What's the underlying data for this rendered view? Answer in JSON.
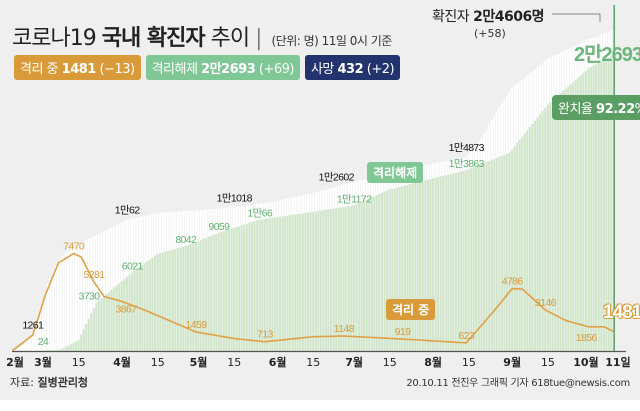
{
  "header": {
    "title_regular": "코로나19",
    "title_bold": "국내 확진자",
    "title_tail": "추이",
    "unit_note": "(단위: 명) 11일 0시 기준"
  },
  "badges": {
    "isolating": {
      "label": "격리 중",
      "value": "1481",
      "change": "(−13)"
    },
    "released": {
      "label": "격리해제",
      "value": "2만2693",
      "change": "(+69)"
    },
    "deaths": {
      "label": "사망",
      "value": "432",
      "change": "(+2)"
    }
  },
  "total": {
    "label": "확진자",
    "value": "2만4606명",
    "change": "(+58)"
  },
  "released_latest": "2만2693",
  "recovery_rate": {
    "label": "완치율",
    "value": "92.22",
    "unit": "%"
  },
  "tags": {
    "released": "격리해제",
    "isolating": "격리 중"
  },
  "isolating_latest": "1481",
  "source": {
    "label": "자료:",
    "value": "질병관리청"
  },
  "credit": "20.10.11 전진우 그래픽 기자 618tue@newsis.com",
  "colors": {
    "background": "#efefef",
    "confirmed": "#ffffff",
    "released": "#cfe6c9",
    "isolating": "#e0a045",
    "deaths": "#23336e",
    "released_label": "#6bb67a"
  },
  "chart_data": {
    "type": "area",
    "xlabel": "",
    "ylabel": "",
    "x_range": [
      "2020-02-18",
      "2020-10-11"
    ],
    "ylim": [
      0,
      24606
    ],
    "grid": false,
    "x_ticks": [
      {
        "date": "2020-02-18",
        "label": "2월"
      },
      {
        "date": "2020-03-01",
        "label": "3월"
      },
      {
        "date": "2020-03-15",
        "label": "15"
      },
      {
        "date": "2020-04-01",
        "label": "4월"
      },
      {
        "date": "2020-04-15",
        "label": "15"
      },
      {
        "date": "2020-05-01",
        "label": "5월"
      },
      {
        "date": "2020-05-15",
        "label": "15"
      },
      {
        "date": "2020-06-01",
        "label": "6월"
      },
      {
        "date": "2020-06-15",
        "label": "15"
      },
      {
        "date": "2020-07-01",
        "label": "7월"
      },
      {
        "date": "2020-07-15",
        "label": "15"
      },
      {
        "date": "2020-08-01",
        "label": "8월"
      },
      {
        "date": "2020-08-15",
        "label": "15"
      },
      {
        "date": "2020-09-01",
        "label": "9월"
      },
      {
        "date": "2020-09-15",
        "label": "15"
      },
      {
        "date": "2020-10-01",
        "label": "10월"
      },
      {
        "date": "2020-10-11",
        "label": "11일"
      }
    ],
    "series": [
      {
        "key": "confirmed",
        "type": "bar",
        "points": [
          [
            "2020-02-18",
            31
          ],
          [
            "2020-02-22",
            433
          ],
          [
            "2020-02-26",
            1261
          ],
          [
            "2020-02-29",
            3150
          ],
          [
            "2020-03-03",
            5186
          ],
          [
            "2020-03-06",
            6593
          ],
          [
            "2020-03-10",
            7513
          ],
          [
            "2020-03-15",
            8162
          ],
          [
            "2020-03-22",
            8897
          ],
          [
            "2020-04-03",
            10062
          ],
          [
            "2020-04-15",
            10591
          ],
          [
            "2020-05-01",
            10774
          ],
          [
            "2020-05-15",
            11018
          ],
          [
            "2020-06-01",
            11503
          ],
          [
            "2020-06-15",
            12121
          ],
          [
            "2020-06-24",
            12602
          ],
          [
            "2020-07-15",
            13612
          ],
          [
            "2020-08-01",
            14366
          ],
          [
            "2020-08-14",
            14873
          ],
          [
            "2020-08-20",
            16346
          ],
          [
            "2020-08-27",
            18706
          ],
          [
            "2020-09-01",
            20182
          ],
          [
            "2020-09-15",
            22391
          ],
          [
            "2020-10-01",
            23889
          ],
          [
            "2020-10-11",
            24606
          ]
        ]
      },
      {
        "key": "released",
        "type": "bar",
        "points": [
          [
            "2020-02-18",
            12
          ],
          [
            "2020-03-01",
            24
          ],
          [
            "2020-03-08",
            118
          ],
          [
            "2020-03-15",
            834
          ],
          [
            "2020-03-22",
            3730
          ],
          [
            "2020-04-05",
            6021
          ],
          [
            "2020-04-15",
            7447
          ],
          [
            "2020-04-26",
            8042
          ],
          [
            "2020-05-09",
            9059
          ],
          [
            "2020-05-25",
            10066
          ],
          [
            "2020-06-15",
            10669
          ],
          [
            "2020-07-01",
            11172
          ],
          [
            "2020-07-15",
            12385
          ],
          [
            "2020-08-01",
            13233
          ],
          [
            "2020-08-14",
            13863
          ],
          [
            "2020-08-31",
            15198
          ],
          [
            "2020-09-15",
            18891
          ],
          [
            "2020-10-01",
            21666
          ],
          [
            "2020-10-11",
            22693
          ]
        ]
      },
      {
        "key": "isolating",
        "type": "line",
        "points": [
          [
            "2020-02-18",
            29
          ],
          [
            "2020-02-26",
            1225
          ],
          [
            "2020-03-02",
            4335
          ],
          [
            "2020-03-07",
            6743
          ],
          [
            "2020-03-13",
            7470
          ],
          [
            "2020-03-16",
            7206
          ],
          [
            "2020-03-21",
            5281
          ],
          [
            "2020-03-25",
            4166
          ],
          [
            "2020-03-31",
            3867
          ],
          [
            "2020-04-10",
            3125
          ],
          [
            "2020-04-30",
            1459
          ],
          [
            "2020-05-15",
            956
          ],
          [
            "2020-05-27",
            713
          ],
          [
            "2020-06-15",
            1095
          ],
          [
            "2020-06-27",
            1148
          ],
          [
            "2020-07-20",
            919
          ],
          [
            "2020-08-14",
            623
          ],
          [
            "2020-08-25",
            3100
          ],
          [
            "2020-09-01",
            4786
          ],
          [
            "2020-09-05",
            4747
          ],
          [
            "2020-09-14",
            3146
          ],
          [
            "2020-09-22",
            2336
          ],
          [
            "2020-10-01",
            1856
          ],
          [
            "2020-10-07",
            1856
          ],
          [
            "2020-10-11",
            1481
          ]
        ]
      }
    ],
    "annotations": [
      {
        "series": "confirmed",
        "date": "2020-02-26",
        "value": 1261,
        "label": "1261"
      },
      {
        "series": "confirmed",
        "date": "2020-04-03",
        "value": 10062,
        "label": "1만62"
      },
      {
        "series": "confirmed",
        "date": "2020-05-15",
        "value": 11018,
        "label": "1만1018"
      },
      {
        "series": "confirmed",
        "date": "2020-06-24",
        "value": 12602,
        "label": "1만2602"
      },
      {
        "series": "confirmed",
        "date": "2020-08-14",
        "value": 14873,
        "label": "1만4873"
      },
      {
        "series": "released",
        "date": "2020-03-01",
        "value": 24,
        "label": "24"
      },
      {
        "series": "released",
        "date": "2020-03-22",
        "value": 3730,
        "label": "3730"
      },
      {
        "series": "released",
        "date": "2020-04-05",
        "value": 6021,
        "label": "6021"
      },
      {
        "series": "released",
        "date": "2020-04-26",
        "value": 8042,
        "label": "8042"
      },
      {
        "series": "released",
        "date": "2020-05-09",
        "value": 9059,
        "label": "9059"
      },
      {
        "series": "released",
        "date": "2020-05-25",
        "value": 10066,
        "label": "1만66"
      },
      {
        "series": "released",
        "date": "2020-07-01",
        "value": 11172,
        "label": "1만1172"
      },
      {
        "series": "released",
        "date": "2020-08-14",
        "value": 13863,
        "label": "1만3863"
      },
      {
        "series": "isolating",
        "date": "2020-03-13",
        "value": 7470,
        "label": "7470"
      },
      {
        "series": "isolating",
        "date": "2020-03-21",
        "value": 5281,
        "label": "5281"
      },
      {
        "series": "isolating",
        "date": "2020-03-31",
        "value": 3867,
        "label": "3867"
      },
      {
        "series": "isolating",
        "date": "2020-04-30",
        "value": 1459,
        "label": "1459"
      },
      {
        "series": "isolating",
        "date": "2020-05-27",
        "value": 713,
        "label": "713"
      },
      {
        "series": "isolating",
        "date": "2020-06-27",
        "value": 1148,
        "label": "1148"
      },
      {
        "series": "isolating",
        "date": "2020-07-20",
        "value": 919,
        "label": "919"
      },
      {
        "series": "isolating",
        "date": "2020-08-14",
        "value": 623,
        "label": "623"
      },
      {
        "series": "isolating",
        "date": "2020-09-01",
        "value": 4786,
        "label": "4786"
      },
      {
        "series": "isolating",
        "date": "2020-09-14",
        "value": 3146,
        "label": "3146"
      },
      {
        "series": "isolating",
        "date": "2020-10-01",
        "value": 1856,
        "label": "1856"
      }
    ]
  }
}
